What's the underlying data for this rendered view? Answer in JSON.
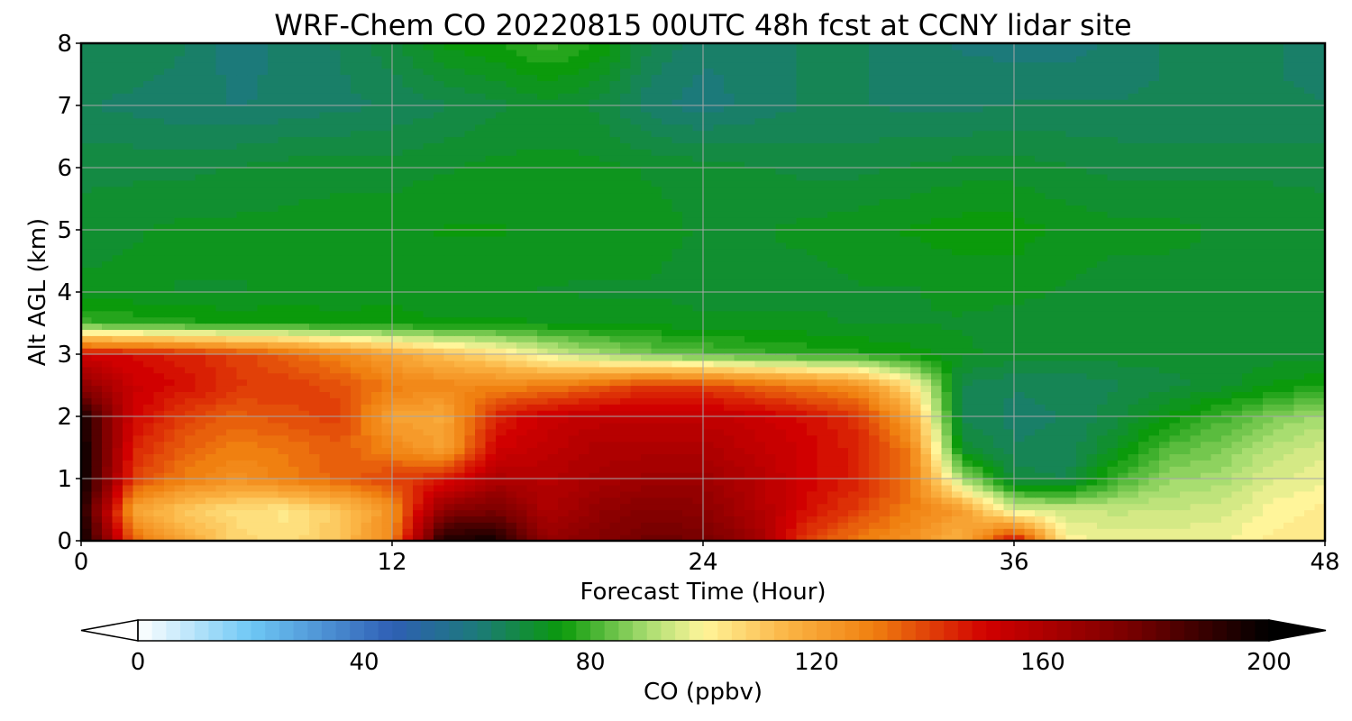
{
  "chart_data": {
    "type": "heatmap",
    "title": "WRF-Chem CO  20220815 00UTC 48h fcst at CCNY lidar site",
    "xlabel": "Forecast Time (Hour)",
    "ylabel": "Alt AGL (km)",
    "xlim": [
      0,
      48
    ],
    "ylim": [
      0,
      8
    ],
    "xticks": [
      0,
      12,
      24,
      36,
      48
    ],
    "yticks": [
      0,
      1,
      2,
      3,
      4,
      5,
      6,
      7,
      8
    ],
    "grid": true,
    "colorbar": {
      "label": "CO  (ppbv)",
      "range": [
        0,
        200
      ],
      "ticks": [
        0,
        40,
        80,
        120,
        160,
        200
      ],
      "extend": "both",
      "stops": [
        {
          "value": 0,
          "color": "#ffffff"
        },
        {
          "value": 20,
          "color": "#6ec8f5"
        },
        {
          "value": 45,
          "color": "#2f5fb5"
        },
        {
          "value": 60,
          "color": "#1c7a7a"
        },
        {
          "value": 75,
          "color": "#0b9a0b"
        },
        {
          "value": 90,
          "color": "#a8dd70"
        },
        {
          "value": 100,
          "color": "#fff59a"
        },
        {
          "value": 115,
          "color": "#fbb444"
        },
        {
          "value": 130,
          "color": "#f08010"
        },
        {
          "value": 150,
          "color": "#d10000"
        },
        {
          "value": 175,
          "color": "#7a0000"
        },
        {
          "value": 200,
          "color": "#000000"
        }
      ]
    },
    "hours": [
      0,
      2,
      4,
      6,
      8,
      10,
      12,
      14,
      16,
      18,
      20,
      22,
      24,
      26,
      28,
      30,
      32,
      34,
      36,
      38,
      40,
      42,
      44,
      46,
      48
    ],
    "altitudes_km": [
      0,
      0.5,
      1,
      1.5,
      2,
      2.5,
      3,
      3.5,
      4,
      5,
      6,
      7,
      8
    ],
    "values_ppbv": [
      [
        200,
        135,
        118,
        108,
        104,
        112,
        128,
        196,
        196,
        168,
        172,
        178,
        176,
        165,
        140,
        130,
        125,
        115,
        152,
        100,
        98,
        98,
        98,
        102,
        104
      ],
      [
        195,
        120,
        110,
        105,
        103,
        110,
        125,
        170,
        175,
        160,
        168,
        172,
        170,
        160,
        148,
        140,
        130,
        122,
        95,
        94,
        93,
        94,
        95,
        100,
        102
      ],
      [
        200,
        140,
        130,
        125,
        130,
        135,
        140,
        145,
        160,
        158,
        162,
        165,
        165,
        158,
        150,
        145,
        132,
        90,
        68,
        66,
        80,
        88,
        90,
        96,
        98
      ],
      [
        200,
        145,
        135,
        130,
        132,
        136,
        128,
        120,
        150,
        155,
        160,
        160,
        160,
        155,
        150,
        145,
        130,
        70,
        64,
        64,
        72,
        82,
        86,
        92,
        95
      ],
      [
        196,
        150,
        140,
        135,
        138,
        140,
        120,
        118,
        145,
        152,
        155,
        155,
        155,
        152,
        148,
        142,
        120,
        66,
        63,
        64,
        68,
        74,
        80,
        86,
        90
      ],
      [
        170,
        152,
        148,
        142,
        140,
        138,
        130,
        128,
        128,
        130,
        135,
        142,
        140,
        135,
        130,
        125,
        105,
        66,
        64,
        64,
        66,
        68,
        70,
        74,
        76
      ],
      [
        150,
        148,
        145,
        140,
        135,
        128,
        120,
        112,
        106,
        96,
        90,
        85,
        82,
        80,
        78,
        77,
        75,
        72,
        70,
        70,
        70,
        70,
        70,
        70,
        70
      ],
      [
        80,
        78,
        77,
        76,
        76,
        75,
        75,
        74,
        74,
        74,
        73,
        73,
        72,
        72,
        72,
        71,
        71,
        71,
        70,
        70,
        70,
        71,
        70,
        70,
        70
      ],
      [
        72,
        72,
        71,
        71,
        72,
        72,
        73,
        72,
        72,
        71,
        71,
        71,
        70,
        70,
        70,
        71,
        71,
        72,
        72,
        71,
        70,
        70,
        70,
        70,
        70
      ],
      [
        70,
        71,
        72,
        72,
        72,
        73,
        73,
        74,
        74,
        73,
        72,
        72,
        71,
        71,
        72,
        73,
        74,
        75,
        75,
        73,
        72,
        72,
        71,
        71,
        70
      ],
      [
        68,
        68,
        68,
        69,
        70,
        70,
        70,
        71,
        72,
        72,
        72,
        71,
        70,
        69,
        68,
        68,
        69,
        70,
        70,
        69,
        68,
        68,
        68,
        68,
        68
      ],
      [
        64,
        63,
        62,
        61,
        62,
        63,
        64,
        66,
        68,
        70,
        68,
        62,
        60,
        62,
        64,
        64,
        63,
        63,
        64,
        64,
        64,
        64,
        64,
        64,
        64
      ],
      [
        66,
        66,
        64,
        60,
        62,
        64,
        68,
        74,
        76,
        80,
        76,
        66,
        62,
        62,
        64,
        64,
        62,
        61,
        60,
        60,
        62,
        64,
        64,
        64,
        62
      ]
    ]
  }
}
